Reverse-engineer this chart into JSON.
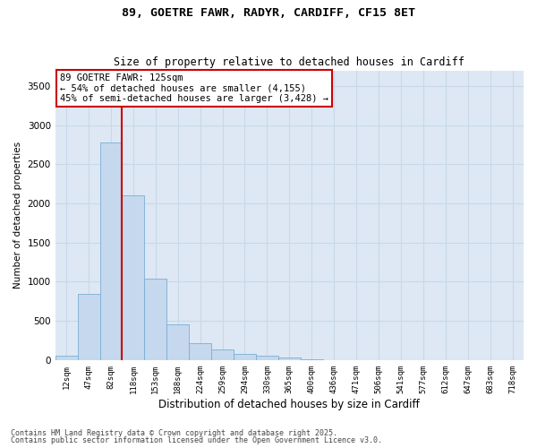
{
  "title1": "89, GOETRE FAWR, RADYR, CARDIFF, CF15 8ET",
  "title2": "Size of property relative to detached houses in Cardiff",
  "xlabel": "Distribution of detached houses by size in Cardiff",
  "ylabel": "Number of detached properties",
  "categories": [
    "12sqm",
    "47sqm",
    "82sqm",
    "118sqm",
    "153sqm",
    "188sqm",
    "224sqm",
    "259sqm",
    "294sqm",
    "330sqm",
    "365sqm",
    "400sqm",
    "436sqm",
    "471sqm",
    "506sqm",
    "541sqm",
    "577sqm",
    "612sqm",
    "647sqm",
    "683sqm",
    "718sqm"
  ],
  "values": [
    55,
    850,
    2780,
    2100,
    1040,
    460,
    210,
    140,
    75,
    55,
    35,
    15,
    0,
    0,
    0,
    0,
    0,
    0,
    0,
    0,
    0
  ],
  "bar_color": "#c5d8ee",
  "bar_edgecolor": "#7aaed4",
  "vline_x": 3,
  "vline_color": "#cc0000",
  "annotation_text": "89 GOETRE FAWR: 125sqm\n← 54% of detached houses are smaller (4,155)\n45% of semi-detached houses are larger (3,428) →",
  "annotation_box_facecolor": "#ffffff",
  "annotation_box_edgecolor": "#cc0000",
  "grid_color": "#c8d8e8",
  "bg_color": "#dde8f4",
  "footer1": "Contains HM Land Registry data © Crown copyright and database right 2025.",
  "footer2": "Contains public sector information licensed under the Open Government Licence v3.0.",
  "ylim": [
    0,
    3700
  ],
  "yticks": [
    0,
    500,
    1000,
    1500,
    2000,
    2500,
    3000,
    3500
  ]
}
